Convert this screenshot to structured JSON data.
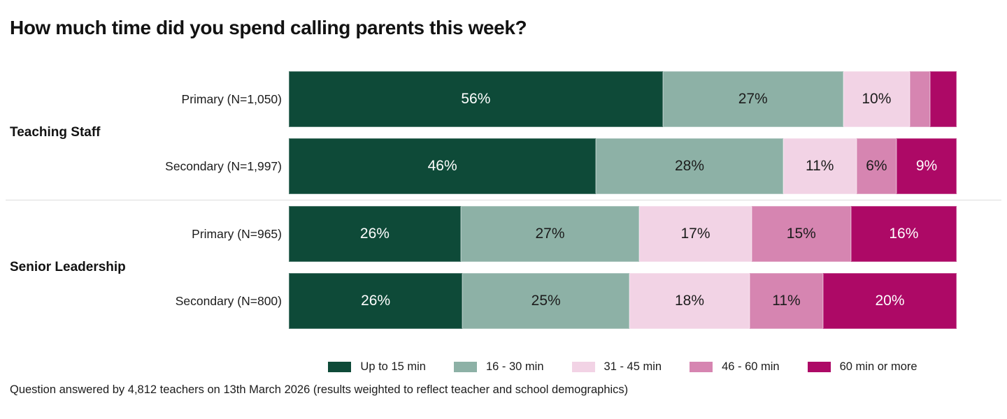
{
  "title": "How much time did you spend calling parents this week?",
  "footer": "Question answered by 4,812 teachers on 13th March 2026 (results weighted to reflect teacher and school demographics)",
  "chart_data": {
    "type": "bar",
    "orientation": "horizontal",
    "stacked": true,
    "unit": "%",
    "legend_position": "bottom",
    "title": "How much time did you spend calling parents this week?",
    "categories": [
      "Up to 15 min",
      "16 - 30 min",
      "31 - 45 min",
      "46 - 60 min",
      "60 min or more"
    ],
    "colors": [
      "#0e4a38",
      "#8db1a6",
      "#f2d3e5",
      "#d685b1",
      "#ad0966"
    ],
    "label_colors": [
      "#ffffff",
      "#1c1c1c",
      "#1c1c1c",
      "#1c1c1c",
      "#ffffff"
    ],
    "groups": [
      {
        "label": "Teaching Staff",
        "rows": [
          {
            "label": "Primary (N=1,050)",
            "values": [
              56,
              27,
              10,
              3,
              4
            ],
            "value_labels": [
              "56%",
              "27%",
              "10%",
              "",
              ""
            ]
          },
          {
            "label": "Secondary (N=1,997)",
            "values": [
              46,
              28,
              11,
              6,
              9
            ],
            "value_labels": [
              "46%",
              "28%",
              "11%",
              "6%",
              "9%"
            ]
          }
        ]
      },
      {
        "label": "Senior Leadership",
        "rows": [
          {
            "label": "Primary (N=965)",
            "values": [
              26,
              27,
              17,
              15,
              16
            ],
            "value_labels": [
              "26%",
              "27%",
              "17%",
              "15%",
              "16%"
            ]
          },
          {
            "label": "Secondary (N=800)",
            "values": [
              26,
              25,
              18,
              11,
              20
            ],
            "value_labels": [
              "26%",
              "25%",
              "18%",
              "11%",
              "20%"
            ]
          }
        ]
      }
    ]
  }
}
